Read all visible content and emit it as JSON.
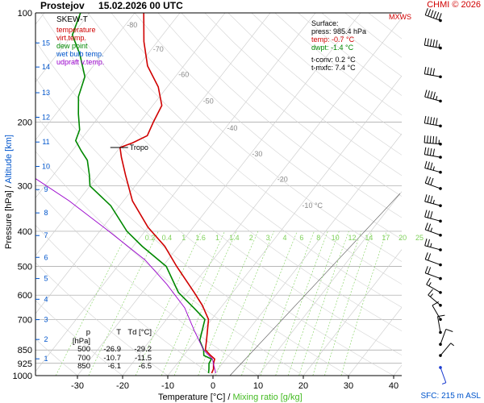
{
  "title": {
    "station": "Prostejov",
    "datetime": "15.02.2026 00 UTC"
  },
  "credit": "CHMI © 2026",
  "sfc_note": "SFC: 215 m ASL",
  "legend": {
    "heading": "SKEW-T",
    "items": [
      {
        "label": "temperature",
        "color": "#d00000"
      },
      {
        "label": "virt.temp.",
        "color": "#d00000"
      },
      {
        "label": "dew point",
        "color": "#008800"
      },
      {
        "label": "wet bulb temp.",
        "color": "#0055cc"
      },
      {
        "label": "udpraft v.temp.",
        "color": "#9900cc"
      }
    ]
  },
  "surface": {
    "heading": "Surface:",
    "press": "press: 985.4 hPa",
    "temp": "temp: -0.7 °C",
    "dwpt": "dwpt: -1.4 °C",
    "tconv": "t-conv: 0.2 °C",
    "tmxfc": "t-mxfc: 7.4 °C"
  },
  "table": {
    "headers": [
      "p [hPa]",
      "T",
      "Td [°C]"
    ],
    "rows": [
      [
        "500",
        "-26.9",
        "-29.2"
      ],
      [
        "700",
        "-10.7",
        "-11.5"
      ],
      [
        "850",
        "-6.1",
        "-6.5"
      ]
    ]
  },
  "mxws_label": "MXWS",
  "tropo_label": "Tropo",
  "axis": {
    "x_title_temp": "Temperature [°C]",
    "x_sep": "/",
    "x_title_mix": "Mixing ratio [g/kg]",
    "y_title_press": "Pressure [hPa]",
    "y_sep": "/",
    "y_title_alt": "Altitude [km]"
  },
  "colors": {
    "temperature": "#d00000",
    "dewpoint": "#008800",
    "parcel": "#9900cc",
    "mixing": "#7fd15a",
    "isobar": "#a0a0a0",
    "altitude": "#0055cc"
  },
  "chart_data": {
    "type": "line",
    "subtype": "skew-t log-p",
    "xlabel": "Temperature [°C] / Mixing ratio [g/kg]",
    "ylabel": "Pressure [hPa] / Altitude [km]",
    "x_ticks": [
      -30,
      -20,
      -10,
      0,
      10,
      20,
      30,
      40
    ],
    "y_ticks": [
      100,
      200,
      300,
      400,
      500,
      600,
      700,
      850,
      925,
      1000
    ],
    "xlim": [
      -35,
      45
    ],
    "ylim": [
      1000,
      100
    ],
    "y_scale": "log",
    "grid": true,
    "altitude_km_ticks": [
      {
        "label": "1",
        "p": 899
      },
      {
        "label": "2",
        "p": 795
      },
      {
        "label": "3",
        "p": 701
      },
      {
        "label": "4",
        "p": 616
      },
      {
        "label": "5",
        "p": 540
      },
      {
        "label": "6",
        "p": 472
      },
      {
        "label": "7",
        "p": 411
      },
      {
        "label": "8",
        "p": 356
      },
      {
        "label": "9",
        "p": 307
      },
      {
        "label": "10",
        "p": 265
      },
      {
        "label": "11",
        "p": 227
      },
      {
        "label": "12",
        "p": 194
      },
      {
        "label": "13",
        "p": 166
      },
      {
        "label": "14",
        "p": 141
      },
      {
        "label": "15",
        "p": 121
      }
    ],
    "isotherm_labels": [
      {
        "label": "-80",
        "p": 108
      },
      {
        "label": "-70",
        "p": 126
      },
      {
        "label": "-60",
        "p": 148
      },
      {
        "label": "-50",
        "p": 175
      },
      {
        "label": "-40",
        "p": 208
      },
      {
        "label": "-30",
        "p": 245
      },
      {
        "label": "-20",
        "p": 288
      },
      {
        "label": "-10 °C",
        "p": 340
      }
    ],
    "mixing_ratio_labels": [
      "0.2",
      "0.4",
      "1",
      "1.6",
      "1",
      "1.4",
      "2",
      "3",
      "4",
      "6",
      "8",
      "10",
      "12",
      "14",
      "17",
      "20",
      "25"
    ],
    "series": [
      {
        "name": "temperature",
        "points": [
          [
            -0.7,
            985
          ],
          [
            -1.0,
            960
          ],
          [
            -2.0,
            925
          ],
          [
            -2.5,
            900
          ],
          [
            -4.0,
            880
          ],
          [
            -6.1,
            850
          ],
          [
            -7.5,
            800
          ],
          [
            -10.7,
            700
          ],
          [
            -14.5,
            640
          ],
          [
            -18.5,
            590
          ],
          [
            -26.9,
            500
          ],
          [
            -33.0,
            440
          ],
          [
            -40.0,
            390
          ],
          [
            -48.0,
            330
          ],
          [
            -54.0,
            280
          ],
          [
            -58.0,
            250
          ],
          [
            -60.0,
            235
          ],
          [
            -58.0,
            228
          ],
          [
            -56.0,
            218
          ],
          [
            -57.0,
            200
          ],
          [
            -58.0,
            180
          ],
          [
            -62.0,
            160
          ],
          [
            -68.0,
            140
          ],
          [
            -73.0,
            120
          ],
          [
            -78.0,
            100
          ]
        ]
      },
      {
        "name": "dew point",
        "points": [
          [
            -1.4,
            985
          ],
          [
            -2.0,
            960
          ],
          [
            -3.0,
            925
          ],
          [
            -3.2,
            900
          ],
          [
            -5.5,
            880
          ],
          [
            -6.5,
            850
          ],
          [
            -9.0,
            800
          ],
          [
            -11.5,
            700
          ],
          [
            -16.0,
            650
          ],
          [
            -22.0,
            590
          ],
          [
            -29.2,
            500
          ],
          [
            -38.0,
            440
          ],
          [
            -44.0,
            400
          ],
          [
            -52.0,
            340
          ],
          [
            -60.0,
            300
          ],
          [
            -62.0,
            280
          ],
          [
            -65.0,
            255
          ],
          [
            -68.0,
            240
          ],
          [
            -71.0,
            225
          ],
          [
            -72.0,
            210
          ],
          [
            -75.0,
            190
          ],
          [
            -78.0,
            170
          ],
          [
            -80.0,
            150
          ],
          [
            -85.0,
            130
          ],
          [
            -90.0,
            115
          ],
          [
            -92.0,
            100
          ]
        ]
      },
      {
        "name": "udpraft v.temp.",
        "points": [
          [
            0.2,
            985
          ],
          [
            -3.0,
            900
          ],
          [
            -6.5,
            850
          ],
          [
            -12.0,
            750
          ],
          [
            -18.0,
            650
          ],
          [
            -26.0,
            560
          ],
          [
            -35.0,
            480
          ],
          [
            -48.0,
            400
          ],
          [
            -62.0,
            330
          ],
          [
            -78.0,
            270
          ],
          [
            -95.0,
            220
          ],
          [
            -115.0,
            180
          ],
          [
            -140.0,
            140
          ],
          [
            -160.0,
            115
          ]
        ]
      }
    ],
    "annotations": [
      {
        "text": "Tropo",
        "p": 235
      }
    ],
    "wind_barbs": [
      {
        "p": 105,
        "speed_kt": 60,
        "dir": 290
      },
      {
        "p": 125,
        "speed_kt": 55,
        "dir": 280
      },
      {
        "p": 150,
        "speed_kt": 40,
        "dir": 280
      },
      {
        "p": 175,
        "speed_kt": 45,
        "dir": 285
      },
      {
        "p": 205,
        "speed_kt": 50,
        "dir": 280
      },
      {
        "p": 230,
        "speed_kt": 55,
        "dir": 275
      },
      {
        "p": 250,
        "speed_kt": 40,
        "dir": 280
      },
      {
        "p": 275,
        "speed_kt": 35,
        "dir": 285
      },
      {
        "p": 305,
        "speed_kt": 30,
        "dir": 290
      },
      {
        "p": 340,
        "speed_kt": 35,
        "dir": 285
      },
      {
        "p": 375,
        "speed_kt": 30,
        "dir": 285
      },
      {
        "p": 410,
        "speed_kt": 25,
        "dir": 290
      },
      {
        "p": 450,
        "speed_kt": 25,
        "dir": 285
      },
      {
        "p": 495,
        "speed_kt": 20,
        "dir": 290
      },
      {
        "p": 540,
        "speed_kt": 20,
        "dir": 290
      },
      {
        "p": 590,
        "speed_kt": 15,
        "dir": 300
      },
      {
        "p": 640,
        "speed_kt": 15,
        "dir": 310
      },
      {
        "p": 700,
        "speed_kt": 10,
        "dir": 330
      },
      {
        "p": 760,
        "speed_kt": 10,
        "dir": 350
      },
      {
        "p": 820,
        "speed_kt": 10,
        "dir": 20
      },
      {
        "p": 880,
        "speed_kt": 5,
        "dir": 40
      },
      {
        "p": 950,
        "speed_kt": 5,
        "dir": 160
      }
    ]
  }
}
